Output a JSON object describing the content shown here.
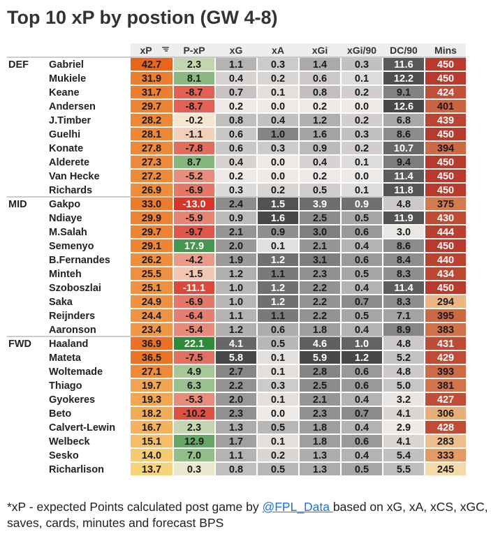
{
  "title": "Top 10 xP by postion (GW 4-8)",
  "colors": {
    "xp_low": "#f7d37a",
    "xp_high": "#e8651a",
    "pxp_neg": "#d8342a",
    "pxp_zero": "#f8f0d8",
    "pxp_pos": "#2f8a3a",
    "grey_low": "#ece9e7",
    "grey_high": "#484848",
    "mins_low": "#f4d9a9",
    "mins_mid": "#e0905a",
    "mins_high": "#b83a2c",
    "header_bg": "#eeeeee"
  },
  "sort_icon": "sort-descending-icon",
  "chart_data": {
    "type": "table",
    "columns": [
      "xP",
      "P-xP",
      "xG",
      "xA",
      "xGi",
      "xGi/90",
      "DC/90",
      "Mins"
    ],
    "groups": [
      {
        "name": "DEF",
        "rows": [
          {
            "player": "Gabriel",
            "values": [
              "42.7",
              "2.3",
              "1.1",
              "0.3",
              "1.4",
              "0.3",
              "11.6",
              "450"
            ]
          },
          {
            "player": "Mukiele",
            "values": [
              "31.9",
              "8.1",
              "0.4",
              "0.2",
              "0.6",
              "0.1",
              "12.2",
              "450"
            ]
          },
          {
            "player": "Keane",
            "values": [
              "31.7",
              "-8.7",
              "0.7",
              "0.1",
              "0.8",
              "0.2",
              "9.1",
              "424"
            ]
          },
          {
            "player": "Andersen",
            "values": [
              "29.7",
              "-8.7",
              "0.2",
              "0.0",
              "0.2",
              "0.0",
              "12.6",
              "401"
            ]
          },
          {
            "player": "J.Timber",
            "values": [
              "28.2",
              "-0.2",
              "0.8",
              "0.4",
              "1.2",
              "0.2",
              "6.8",
              "439"
            ]
          },
          {
            "player": "Guelhi",
            "values": [
              "28.1",
              "-1.1",
              "0.6",
              "1.0",
              "1.6",
              "0.3",
              "8.6",
              "450"
            ]
          },
          {
            "player": "Konate",
            "values": [
              "27.8",
              "-7.8",
              "0.6",
              "0.3",
              "0.9",
              "0.2",
              "10.7",
              "394"
            ]
          },
          {
            "player": "Alderete",
            "values": [
              "27.3",
              "8.7",
              "0.4",
              "0.0",
              "0.4",
              "0.1",
              "9.4",
              "450"
            ]
          },
          {
            "player": "Van Hecke",
            "values": [
              "27.2",
              "-5.2",
              "0.2",
              "0.0",
              "0.2",
              "0.0",
              "11.4",
              "450"
            ]
          },
          {
            "player": "Richards",
            "values": [
              "26.9",
              "-6.9",
              "0.3",
              "0.2",
              "0.5",
              "0.1",
              "11.8",
              "450"
            ]
          }
        ]
      },
      {
        "name": "MID",
        "rows": [
          {
            "player": "Gakpo",
            "values": [
              "33.0",
              "-13.0",
              "2.4",
              "1.5",
              "3.9",
              "0.9",
              "4.8",
              "375"
            ]
          },
          {
            "player": "Ndiaye",
            "values": [
              "29.9",
              "-5.9",
              "0.9",
              "1.6",
              "2.5",
              "0.5",
              "11.9",
              "430"
            ]
          },
          {
            "player": "M.Salah",
            "values": [
              "29.7",
              "-9.7",
              "2.1",
              "0.9",
              "3.0",
              "0.6",
              "3.0",
              "444"
            ]
          },
          {
            "player": "Semenyo",
            "values": [
              "29.1",
              "17.9",
              "2.0",
              "0.1",
              "2.1",
              "0.4",
              "8.6",
              "450"
            ]
          },
          {
            "player": "B.Fernandes",
            "values": [
              "26.2",
              "-4.2",
              "1.9",
              "1.2",
              "3.1",
              "0.6",
              "8.4",
              "440"
            ]
          },
          {
            "player": "Minteh",
            "values": [
              "25.5",
              "-1.5",
              "1.2",
              "1.1",
              "2.3",
              "0.5",
              "8.3",
              "434"
            ]
          },
          {
            "player": "Szoboszlai",
            "values": [
              "25.1",
              "-11.1",
              "1.0",
              "1.2",
              "2.2",
              "0.4",
              "11.4",
              "450"
            ]
          },
          {
            "player": "Saka",
            "values": [
              "24.9",
              "-6.9",
              "1.0",
              "1.2",
              "2.2",
              "0.7",
              "8.3",
              "294"
            ]
          },
          {
            "player": "Reijnders",
            "values": [
              "24.4",
              "-6.4",
              "1.1",
              "1.1",
              "2.2",
              "0.5",
              "7.1",
              "395"
            ]
          },
          {
            "player": "Aaronson",
            "values": [
              "23.4",
              "-5.4",
              "1.2",
              "0.6",
              "1.8",
              "0.4",
              "8.9",
              "383"
            ]
          }
        ]
      },
      {
        "name": "FWD",
        "rows": [
          {
            "player": "Haaland",
            "values": [
              "36.9",
              "22.1",
              "4.1",
              "0.5",
              "4.6",
              "1.0",
              "4.8",
              "431"
            ]
          },
          {
            "player": "Mateta",
            "values": [
              "36.5",
              "-7.5",
              "5.8",
              "0.1",
              "5.9",
              "1.2",
              "5.2",
              "429"
            ]
          },
          {
            "player": "Woltemade",
            "values": [
              "27.1",
              "4.9",
              "2.7",
              "0.1",
              "2.8",
              "0.6",
              "4.8",
              "393"
            ]
          },
          {
            "player": "Thiago",
            "values": [
              "19.7",
              "6.3",
              "2.2",
              "0.3",
              "2.5",
              "0.6",
              "5.0",
              "381"
            ]
          },
          {
            "player": "Gyokeres",
            "values": [
              "19.3",
              "-5.3",
              "2.0",
              "0.1",
              "2.1",
              "0.4",
              "3.2",
              "427"
            ]
          },
          {
            "player": "Beto",
            "values": [
              "18.2",
              "-10.2",
              "2.3",
              "0.0",
              "2.3",
              "0.7",
              "4.1",
              "306"
            ]
          },
          {
            "player": "Calvert-Lewin",
            "values": [
              "16.7",
              "2.3",
              "1.3",
              "0.5",
              "1.8",
              "0.4",
              "2.9",
              "428"
            ]
          },
          {
            "player": "Welbeck",
            "values": [
              "15.1",
              "12.9",
              "1.7",
              "0.1",
              "1.8",
              "0.6",
              "4.1",
              "283"
            ]
          },
          {
            "player": "Sesko",
            "values": [
              "14.0",
              "7.0",
              "1.1",
              "0.2",
              "1.3",
              "0.4",
              "5.4",
              "333"
            ]
          },
          {
            "player": "Richarlison",
            "values": [
              "13.7",
              "0.3",
              "0.8",
              "0.5",
              "1.3",
              "0.5",
              "5.5",
              "245"
            ]
          }
        ]
      }
    ]
  },
  "footnote": {
    "before": "*xP - expected Points calculated post game by ",
    "link": "@FPL_Data ",
    "after": "based on xG, xA, xCS, xGC, saves, cards, minutes and forecast BPS"
  }
}
